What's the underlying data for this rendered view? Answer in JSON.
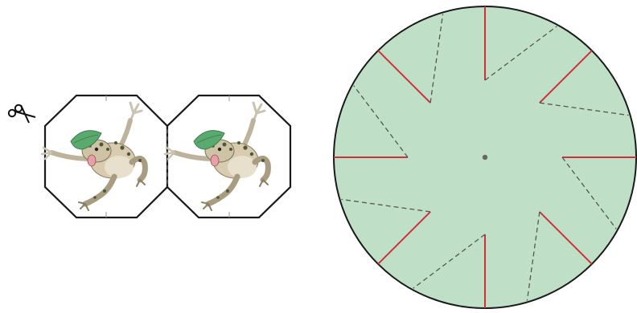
{
  "template_left": {
    "icon": "scissors-icon",
    "panels": [
      {
        "content": "frog-illustration"
      },
      {
        "content": "frog-illustration"
      }
    ],
    "colors": {
      "outline": "#1a1a1a",
      "fold_line": "#666666",
      "frog_body": "#d9cbb0",
      "frog_spots": "#4d5a3a",
      "leaf": "#5aa96f",
      "mouth": "#e7a0a6"
    }
  },
  "wheel_right": {
    "slits": 8,
    "colors": {
      "fill": "#bfe0c6",
      "outline": "#1a1a1a",
      "cut_line": "#d0303a",
      "fold_line": "#555555",
      "center_dot": "#666666"
    }
  }
}
